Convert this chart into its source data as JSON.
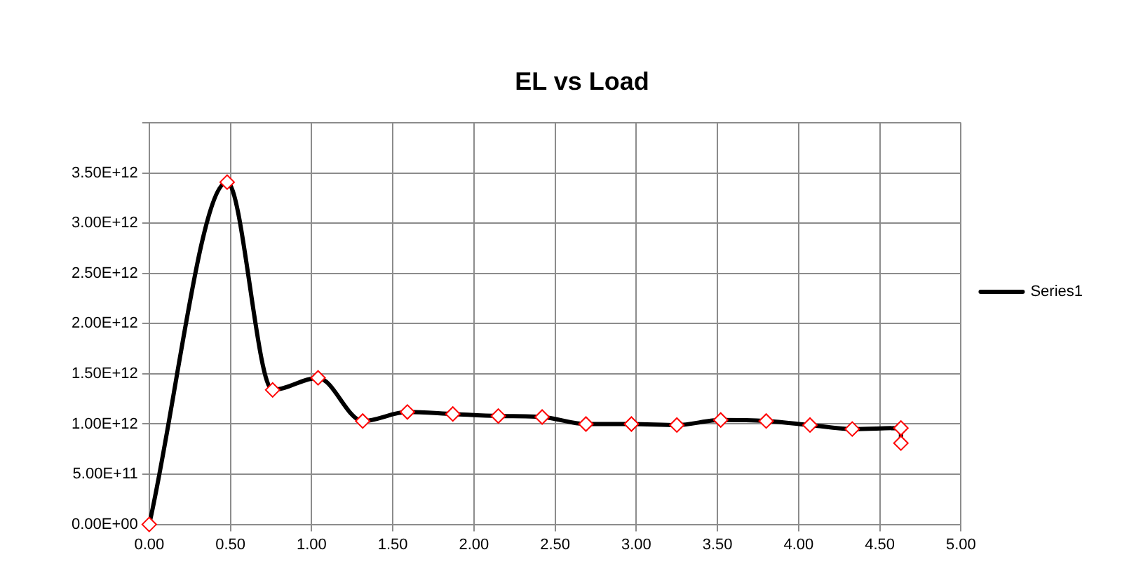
{
  "chart_data": {
    "type": "line",
    "title": "EL vs Load",
    "series": [
      {
        "name": "Series1",
        "color": "#000000",
        "x": [
          0,
          0.48,
          0.76,
          1.04,
          1.315,
          1.59,
          1.87,
          2.15,
          2.42,
          2.69,
          2.97,
          3.25,
          3.52,
          3.8,
          4.07,
          4.33,
          4.63,
          4.63
        ],
        "values": [
          0,
          3410000000000.0,
          1340000000000.0,
          1460000000000.0,
          1030000000000.0,
          1120000000000.0,
          1100000000000.0,
          1080000000000.0,
          1070000000000.0,
          1000000000000.0,
          1000000000000.0,
          990000000000.0,
          1040000000000.0,
          1030000000000.0,
          990000000000.0,
          950000000000.0,
          960000000000.0,
          810000000000.0
        ]
      }
    ],
    "xlim": [
      0,
      5
    ],
    "xticks": [
      {
        "value": 0,
        "label": "0.00"
      },
      {
        "value": 0.5,
        "label": "0.50"
      },
      {
        "value": 1,
        "label": "1.00"
      },
      {
        "value": 1.5,
        "label": "1.50"
      },
      {
        "value": 2,
        "label": "2.00"
      },
      {
        "value": 2.5,
        "label": "2.50"
      },
      {
        "value": 3,
        "label": "3.00"
      },
      {
        "value": 3.5,
        "label": "3.50"
      },
      {
        "value": 4,
        "label": "4.00"
      },
      {
        "value": 4.5,
        "label": "4.50"
      },
      {
        "value": 5,
        "label": "5.00"
      }
    ],
    "ylim": [
      0,
      4000000000000.0
    ],
    "yticks": [
      {
        "value": 0,
        "label": "0.00E+00"
      },
      {
        "value": 500000000000.0,
        "label": "5.00E+11"
      },
      {
        "value": 1000000000000.0,
        "label": "1.00E+12"
      },
      {
        "value": 1500000000000.0,
        "label": "1.50E+12"
      },
      {
        "value": 2000000000000.0,
        "label": "2.00E+12"
      },
      {
        "value": 2500000000000.0,
        "label": "2.50E+12"
      },
      {
        "value": 3000000000000.0,
        "label": "3.00E+12"
      },
      {
        "value": 3500000000000.0,
        "label": "3.50E+12"
      },
      {
        "value": 4000000000000.0,
        "label": null
      }
    ],
    "grid": true,
    "legend": "right",
    "marker": "diamond",
    "line_style": "solid"
  }
}
